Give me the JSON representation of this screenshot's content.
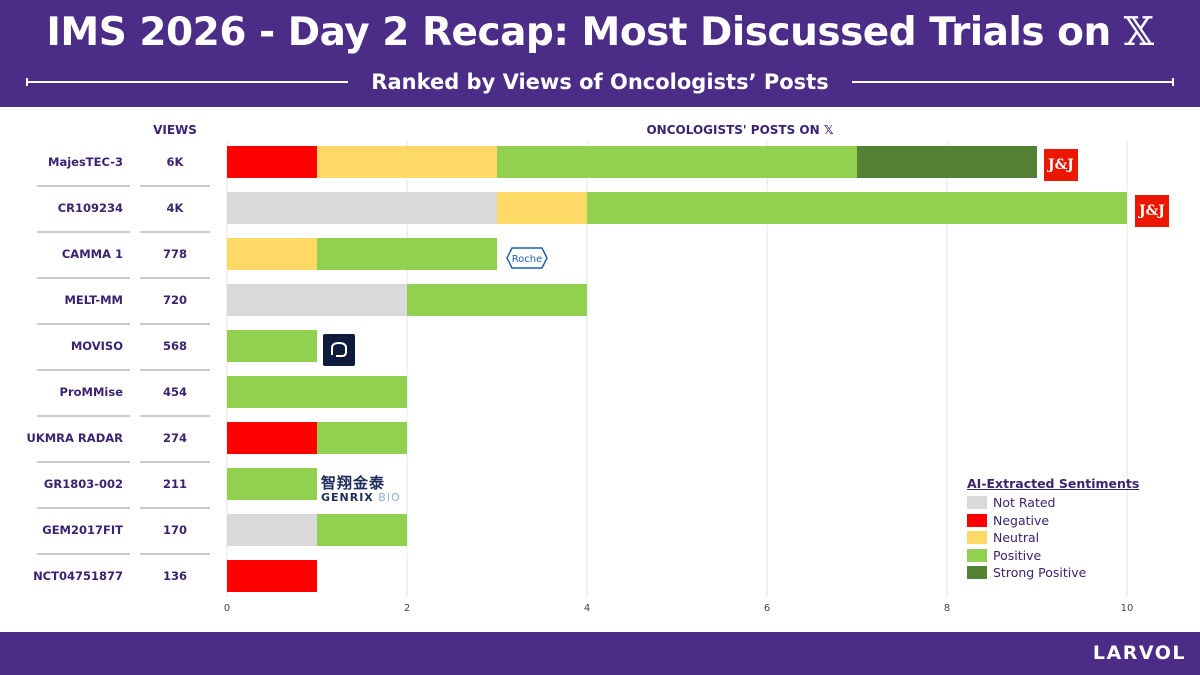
{
  "header": {
    "title": "IMS 2026 - Day 2 Recap: Most Discussed Trials on",
    "title_x": "𝕏",
    "subtitle": "Ranked by Views of Oncologists’ Posts"
  },
  "columns": {
    "views_header": "VIEWS",
    "posts_header": "ONCOLOGISTS' POSTS ON",
    "posts_header_x": "𝕏"
  },
  "footer": {
    "brand": "LARVOL"
  },
  "colors": {
    "not_rated": "#d9d9d9",
    "negative": "#ff0000",
    "neutral": "#ffd966",
    "positive": "#92d050",
    "strong_positive": "#548235",
    "header_bg": "#4b2c86"
  },
  "legend": {
    "title": "AI-Extracted Sentiments",
    "items": [
      {
        "label": "Not Rated",
        "color": "#d9d9d9"
      },
      {
        "label": "Negative",
        "color": "#ff0000"
      },
      {
        "label": "Neutral",
        "color": "#ffd966"
      },
      {
        "label": "Positive",
        "color": "#92d050"
      },
      {
        "label": "Strong Positive",
        "color": "#548235"
      }
    ]
  },
  "logos": {
    "jnj_text": "J&J",
    "roche_text": "Roche",
    "genrix_cn": "智翔金泰",
    "genrix_en_main": "GENRIX",
    "genrix_en_sub": "BIO"
  },
  "chart_data": {
    "type": "bar",
    "orientation": "horizontal",
    "stacked": true,
    "categories": [
      "MajesTEC-3",
      "CR109234",
      "CAMMA 1",
      "MELT-MM",
      "MOVISO",
      "ProMMise",
      "UKMRA RADAR",
      "GR1803-002",
      "GEM2017FIT",
      "NCT04751877"
    ],
    "views": [
      "6K",
      "4K",
      "778",
      "720",
      "568",
      "454",
      "274",
      "211",
      "170",
      "136"
    ],
    "series": [
      {
        "name": "Not Rated",
        "color": "#d9d9d9",
        "values": [
          0,
          3,
          0,
          2,
          0,
          0,
          0,
          0,
          1,
          0
        ]
      },
      {
        "name": "Negative",
        "color": "#ff0000",
        "values": [
          1,
          0,
          0,
          0,
          0,
          0,
          1,
          0,
          0,
          1
        ]
      },
      {
        "name": "Neutral",
        "color": "#ffd966",
        "values": [
          2,
          1,
          1,
          0,
          0,
          0,
          0,
          0,
          0,
          0
        ]
      },
      {
        "name": "Positive",
        "color": "#92d050",
        "values": [
          4,
          6,
          2,
          2,
          1,
          2,
          1,
          1,
          1,
          0
        ]
      },
      {
        "name": "Strong Positive",
        "color": "#548235",
        "values": [
          2,
          0,
          0,
          0,
          0,
          0,
          0,
          0,
          0,
          0
        ]
      }
    ],
    "segment_order": [
      "Not Rated",
      "Negative",
      "Neutral",
      "Positive",
      "Strong Positive"
    ],
    "xlim": [
      0,
      10
    ],
    "xticks": [
      0,
      2,
      4,
      6,
      8,
      10
    ],
    "grid": true
  }
}
